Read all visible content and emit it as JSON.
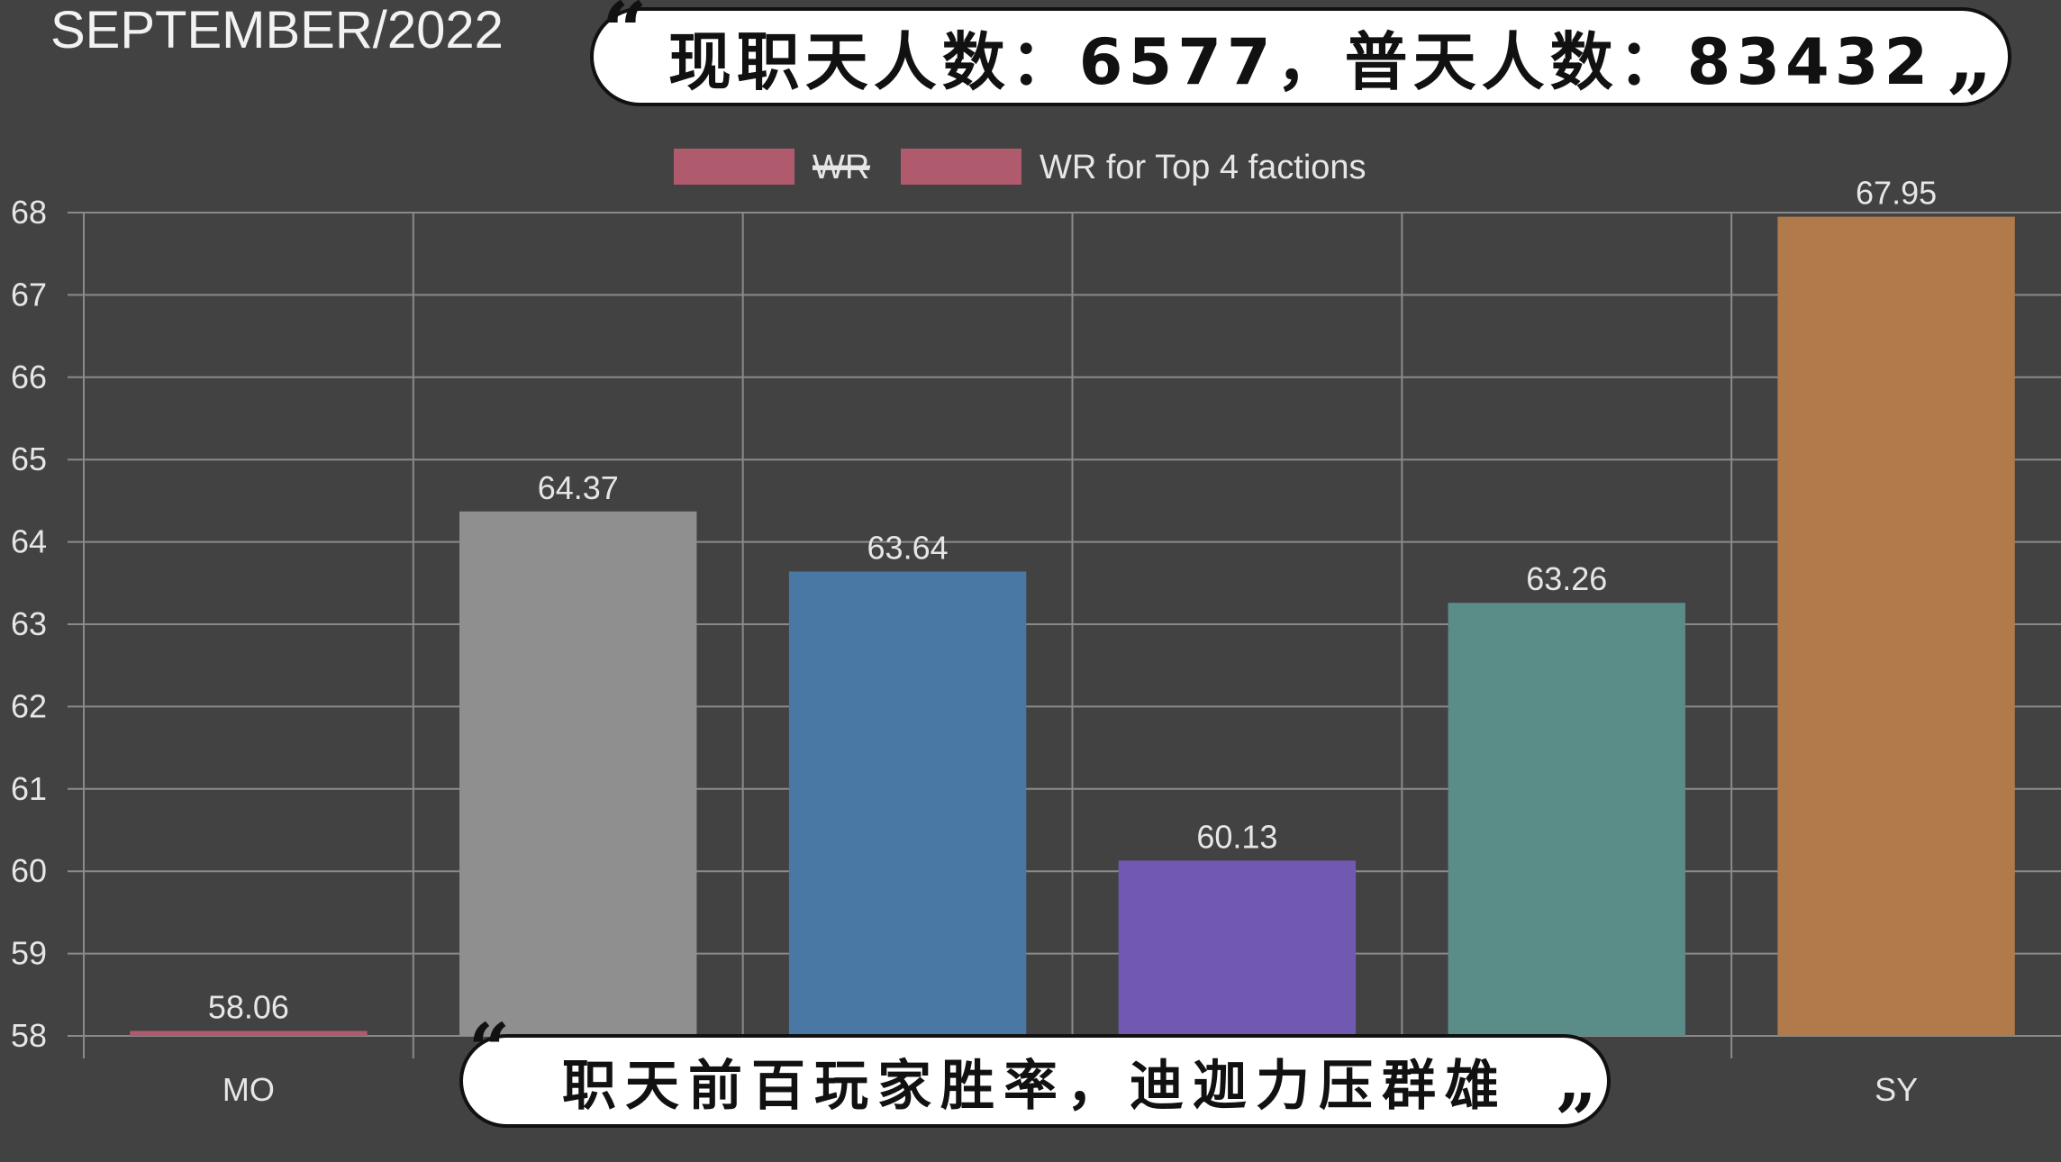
{
  "header": {
    "title": "SEPTEMBER/2022"
  },
  "captions": {
    "top": "现职天人数：6577，普天人数：83432",
    "bottom": "职天前百玩家胜率，迪迦力压群雄"
  },
  "colors": {
    "background": "#424242",
    "grid": "#8a8a8a",
    "text": "#e6e6e6",
    "legend_swatch": "#b05a6e"
  },
  "chart_data": {
    "type": "bar",
    "categories": [
      "MO",
      "",
      "",
      "",
      "",
      "SY"
    ],
    "values": [
      58.06,
      64.37,
      63.64,
      60.13,
      63.26,
      67.95
    ],
    "value_labels": [
      "58.06",
      "64.37",
      "63.64",
      "60.13",
      "63.26",
      "67.95"
    ],
    "bar_colors": [
      "#b05a6e",
      "#8f8f8f",
      "#4a78a4",
      "#7158b0",
      "#5a8c88",
      "#b07a4a"
    ],
    "ylim": [
      58,
      68
    ],
    "yticks": [
      "58",
      "59",
      "60",
      "61",
      "62",
      "63",
      "64",
      "65",
      "66",
      "67",
      "68"
    ],
    "legend": [
      {
        "label": "WR",
        "strikethrough": true
      },
      {
        "label": "WR for Top 4 factions",
        "strikethrough": false
      }
    ],
    "legend_position": "top-center",
    "grid": true
  }
}
